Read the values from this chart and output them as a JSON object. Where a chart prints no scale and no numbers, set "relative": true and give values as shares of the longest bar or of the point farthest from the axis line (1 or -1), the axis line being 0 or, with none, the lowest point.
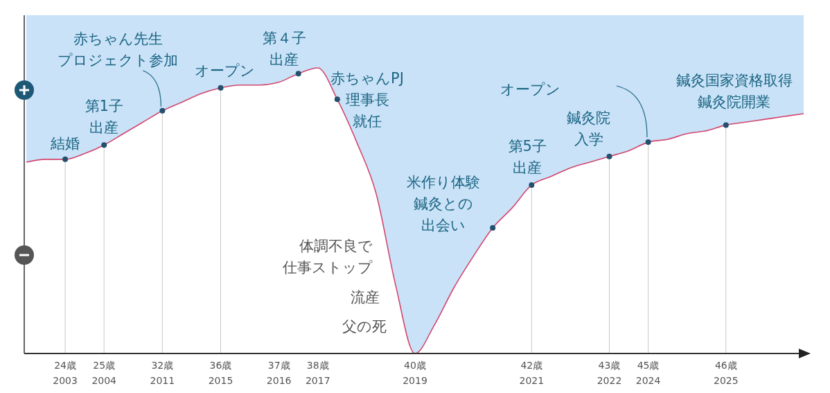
{
  "chart_data": {
    "type": "line",
    "relative": true,
    "grid": "x",
    "categories": [
      null,
      null,
      "24歳\n2003",
      null,
      "25歳\n2004",
      null,
      null,
      "32歳\n2011",
      null,
      null,
      "36歳\n2015",
      null,
      null,
      "37歳\n2016",
      null,
      "38歳\n2017",
      null,
      null,
      null,
      null,
      "40歳\n2019",
      null,
      null,
      null,
      null,
      null,
      "42歳\n2021",
      null,
      null,
      null,
      "43歳\n2022",
      null,
      "45歳\n2024",
      null,
      null,
      null,
      "46歳\n2025",
      null,
      null,
      null,
      null
    ],
    "series": [
      {
        "color": "#d2466f",
        "values": [
          0.67,
          0.68,
          0.68,
          0.7,
          0.73,
          0.77,
          0.81,
          0.85,
          0.88,
          0.91,
          0.93,
          0.94,
          0.94,
          0.95,
          0.98,
          1.0,
          0.89,
          0.74,
          0.56,
          0.24,
          0.0,
          0.1,
          0.23,
          0.34,
          0.44,
          0.51,
          0.59,
          0.62,
          0.65,
          0.67,
          0.69,
          0.71,
          0.74,
          0.75,
          0.77,
          0.78,
          0.8,
          0.81,
          0.82,
          0.83,
          0.84
        ]
      },
      {
        "type": "scatter",
        "color": "#24506e",
        "marker": "circle",
        "values": [
          null,
          null,
          0.68,
          null,
          0.73,
          null,
          null,
          0.85,
          null,
          null,
          0.93,
          null,
          null,
          null,
          0.98,
          null,
          0.89,
          null,
          null,
          null,
          null,
          null,
          null,
          null,
          0.44,
          null,
          0.59,
          null,
          null,
          null,
          0.69,
          null,
          0.74,
          null,
          null,
          null,
          0.8,
          null,
          null,
          null,
          null
        ]
      }
    ],
    "annotations": [
      {
        "text": "結婚",
        "x": "24歳\n2003",
        "y": 0.68
      },
      {
        "text": "第1子出産",
        "x": "25歳\n2004",
        "y": 0.73
      },
      {
        "text": "赤ちゃん先生プロジェクト参加",
        "x": "32歳\n2011",
        "y": 0.85
      },
      {
        "text": "オープン",
        "x": "36歳\n2015",
        "y": 0.93
      },
      "第４子出産",
      "赤ちゃんPJ理事長就任",
      "体調不良で仕事ストップ",
      "流産",
      "父の死",
      "米作り体験鍼灸との出会い",
      {
        "text": "第5子出産",
        "x": "42歳\n2021",
        "y": 0.59
      },
      {
        "text": "鍼灸院入学",
        "x": "43歳\n2022",
        "y": 0.69
      },
      "オープン",
      {
        "text": "鍼灸国家資格取得鍼灸院開業",
        "x": "46歳\n2025",
        "y": 0.8
      }
    ]
  }
}
